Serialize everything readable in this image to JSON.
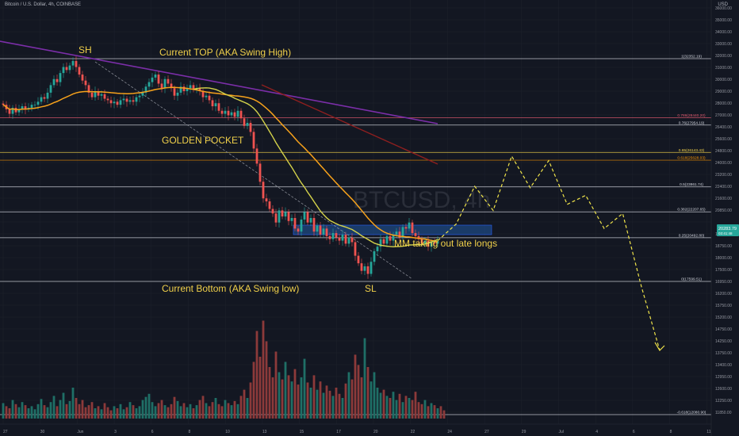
{
  "header": {
    "symbol": "Bitcoin / U.S. Dollar, 4h, COINBASE",
    "currency": "USD"
  },
  "watermark": "BTCUSD, 4h",
  "annotations": {
    "sh": "SH",
    "current_top": "Current TOP (AKA Swing High)",
    "golden_pocket": "GOLDEN POCKET",
    "mm": "MM taking out late longs",
    "current_bottom": "Current Bottom (AKA Swing low)",
    "sl": "SL"
  },
  "chart_data": {
    "type": "candlestick",
    "title": "",
    "price_axis": {
      "ticks": [
        36000,
        35000,
        34000,
        33000,
        32000,
        31000,
        30000,
        29000,
        28000,
        27000,
        26400,
        25600,
        24800,
        24000,
        23200,
        22400,
        21600,
        20850,
        19950,
        19500,
        18750,
        18000,
        17500,
        16950,
        16200,
        15750,
        15200,
        14750,
        14250,
        13750,
        13400,
        12950,
        12600,
        12250,
        11850
      ],
      "labels": [
        "36000.00",
        "35000.00",
        "34000.00",
        "33000.00",
        "32000.00",
        "31000.00",
        "30000.00",
        "29000.00",
        "28000.00",
        "27000.00",
        "26400.00",
        "25600.00",
        "24800.00",
        "24000.00",
        "23200.00",
        "22400.00",
        "21600.00",
        "20850.00",
        "",
        "19500.00",
        "18750.00",
        "18000.00",
        "17500.00",
        "16950.00",
        "16200.00",
        "15750.00",
        "15200.00",
        "14750.00",
        "14250.00",
        "13750.00",
        "13400.00",
        "12950.00",
        "12600.00",
        "12250.00",
        "11850.00"
      ]
    },
    "time_axis": [
      "27",
      "30",
      "Jun",
      "3",
      "6",
      "8",
      "10",
      "13",
      "15",
      "17",
      "20",
      "22",
      "24",
      "27",
      "29",
      "Jul",
      "4",
      "6",
      "8",
      "11"
    ],
    "fib_levels": [
      {
        "ratio": 1,
        "price": 32352.19,
        "label": "1(32352.19)",
        "color": "#d1d4dc"
      },
      {
        "ratio": 0.786,
        "price": 28440.2,
        "label": "0.786(28440.20)",
        "color": "#e05a6e"
      },
      {
        "ratio": 0.76,
        "price": 27954.19,
        "label": "0.76(27954.19)",
        "color": "#d1d4dc"
      },
      {
        "ratio": 0.65,
        "price": 26143.43,
        "label": "0.65(26143.43)",
        "color": "#f0d04a"
      },
      {
        "ratio": 0.618,
        "price": 25628.03,
        "label": "0.618(25628.03)",
        "color": "#ff9800"
      },
      {
        "ratio": 0.5,
        "price": 23861.74,
        "label": "0.5(23861.74)",
        "color": "#d1d4dc"
      },
      {
        "ratio": 0.382,
        "price": 22207.65,
        "label": "0.382(22207.65)",
        "color": "#d1d4dc"
      },
      {
        "ratio": 0.25,
        "price": 20492.8,
        "label": "0.25(20492.80)",
        "color": "#d1d4dc"
      },
      {
        "ratio": 0,
        "price": 17599.51,
        "label": "0(17599.51)",
        "color": "#d1d4dc"
      },
      {
        "ratio": -0.618,
        "price": 12080.9,
        "label": "-0.618(12080.90)",
        "color": "#d1d4dc"
      }
    ],
    "current_price": {
      "value": 20283.79,
      "label": "20283.79",
      "countdown": "03:41:48"
    },
    "swing_high": 32352.19,
    "swing_low": 17599.51,
    "projection_path": [
      20300,
      21400,
      23900,
      22300,
      25900,
      23800,
      25600,
      22700,
      23300,
      21100,
      22100,
      17300,
      14600
    ],
    "candle_closes": [
      29300,
      29000,
      28700,
      29100,
      28800,
      29000,
      29200,
      29000,
      29100,
      29300,
      29300,
      29500,
      29800,
      29700,
      30100,
      30600,
      31000,
      30800,
      31400,
      31800,
      31600,
      31900,
      32200,
      31800,
      31300,
      30900,
      30600,
      30100,
      29800,
      30200,
      29900,
      30000,
      29700,
      29600,
      29400,
      29500,
      29300,
      29600,
      29700,
      29500,
      29600,
      29500,
      29800,
      29900,
      30100,
      30500,
      30800,
      31100,
      31300,
      30700,
      30400,
      31000,
      30700,
      30400,
      29900,
      30100,
      30500,
      30200,
      30400,
      30600,
      30300,
      30400,
      30200,
      29800,
      29900,
      29600,
      29200,
      29400,
      28900,
      28700,
      28900,
      28600,
      28800,
      28500,
      28900,
      28400,
      27900,
      28100,
      27500,
      26400,
      25400,
      24200,
      23100,
      22900,
      22400,
      22100,
      21500,
      22300,
      21900,
      22200,
      21600,
      21800,
      21100,
      20900,
      21700,
      22200,
      21500,
      21800,
      20900,
      21300,
      20700,
      21100,
      20600,
      20400,
      20800,
      20500,
      20300,
      20700,
      20100,
      20500,
      20200,
      19300,
      18800,
      18300,
      18600,
      18100,
      18900,
      19600,
      19900,
      20400,
      20100,
      20600,
      20300,
      20700,
      20900,
      20500,
      21200,
      21100,
      21500,
      20800,
      20600,
      20400,
      20100,
      20300,
      19900,
      20200,
      20100,
      20283.79
    ],
    "volume": [
      0.15,
      0.12,
      0.1,
      0.18,
      0.14,
      0.11,
      0.16,
      0.13,
      0.1,
      0.12,
      0.09,
      0.14,
      0.19,
      0.13,
      0.11,
      0.16,
      0.22,
      0.12,
      0.18,
      0.25,
      0.14,
      0.17,
      0.3,
      0.2,
      0.14,
      0.18,
      0.11,
      0.13,
      0.16,
      0.1,
      0.12,
      0.09,
      0.15,
      0.11,
      0.08,
      0.12,
      0.1,
      0.14,
      0.09,
      0.11,
      0.16,
      0.13,
      0.1,
      0.12,
      0.18,
      0.21,
      0.24,
      0.16,
      0.12,
      0.15,
      0.18,
      0.13,
      0.11,
      0.14,
      0.21,
      0.17,
      0.12,
      0.15,
      0.11,
      0.14,
      0.1,
      0.13,
      0.18,
      0.22,
      0.15,
      0.12,
      0.16,
      0.2,
      0.14,
      0.12,
      0.18,
      0.15,
      0.13,
      0.17,
      0.14,
      0.22,
      0.28,
      0.2,
      0.35,
      0.55,
      0.85,
      0.6,
      0.95,
      0.75,
      0.5,
      0.4,
      0.65,
      0.45,
      0.38,
      0.55,
      0.42,
      0.36,
      0.48,
      0.33,
      0.4,
      0.58,
      0.35,
      0.3,
      0.42,
      0.28,
      0.36,
      0.25,
      0.32,
      0.27,
      0.22,
      0.3,
      0.24,
      0.2,
      0.34,
      0.45,
      0.38,
      0.62,
      0.52,
      0.4,
      0.78,
      0.5,
      0.36,
      0.45,
      0.3,
      0.25,
      0.28,
      0.22,
      0.2,
      0.26,
      0.18,
      0.24,
      0.16,
      0.22,
      0.2,
      0.18,
      0.26,
      0.16,
      0.14,
      0.18,
      0.12,
      0.15,
      0.13,
      0.1,
      0.12,
      0.08
    ]
  }
}
